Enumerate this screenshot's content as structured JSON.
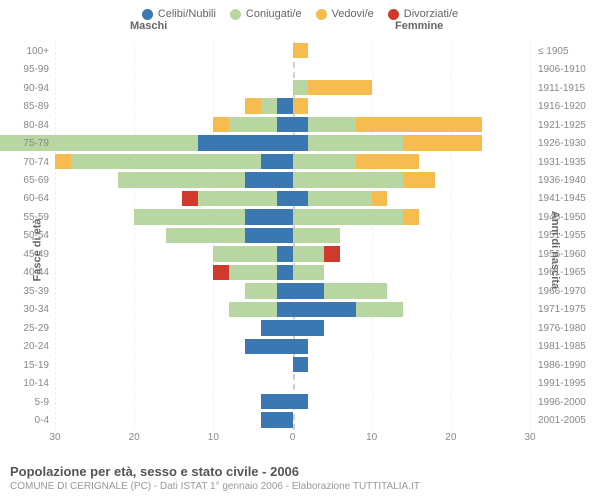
{
  "legend": {
    "items": [
      {
        "label": "Celibi/Nubili",
        "color": "#3b77b0"
      },
      {
        "label": "Coniugati/e",
        "color": "#b7d6a2"
      },
      {
        "label": "Vedovi/e",
        "color": "#f6bc4f"
      },
      {
        "label": "Divorziati/e",
        "color": "#cf3a2d"
      }
    ]
  },
  "genders": {
    "left": "Maschi",
    "right": "Femmine"
  },
  "axes": {
    "left_title": "Fasce di età",
    "right_title": "Anni di nascita",
    "x_max": 30,
    "x_ticks": [
      30,
      20,
      10,
      0,
      10,
      20,
      30
    ]
  },
  "colors": {
    "celibi": "#3b77b0",
    "coniugati": "#b7d6a2",
    "vedovi": "#f6bc4f",
    "divorziati": "#cf3a2d"
  },
  "rows": [
    {
      "age": "100+",
      "birth": "≤ 1905",
      "m": {
        "c": 0,
        "k": 0,
        "v": 0,
        "d": 0
      },
      "f": {
        "c": 0,
        "k": 0,
        "v": 1,
        "d": 0
      }
    },
    {
      "age": "95-99",
      "birth": "1906-1910",
      "m": {
        "c": 0,
        "k": 0,
        "v": 0,
        "d": 0
      },
      "f": {
        "c": 0,
        "k": 0,
        "v": 0,
        "d": 0
      }
    },
    {
      "age": "90-94",
      "birth": "1911-1915",
      "m": {
        "c": 0,
        "k": 0,
        "v": 0,
        "d": 0
      },
      "f": {
        "c": 0,
        "k": 1,
        "v": 4,
        "d": 0
      }
    },
    {
      "age": "85-89",
      "birth": "1916-1920",
      "m": {
        "c": 1,
        "k": 1,
        "v": 1,
        "d": 0
      },
      "f": {
        "c": 0,
        "k": 0,
        "v": 1,
        "d": 0
      }
    },
    {
      "age": "80-84",
      "birth": "1921-1925",
      "m": {
        "c": 1,
        "k": 3,
        "v": 1,
        "d": 0
      },
      "f": {
        "c": 1,
        "k": 3,
        "v": 8,
        "d": 0
      }
    },
    {
      "age": "75-79",
      "birth": "1926-1930",
      "m": {
        "c": 6,
        "k": 15,
        "v": 1,
        "d": 1
      },
      "f": {
        "c": 1,
        "k": 6,
        "v": 5,
        "d": 0
      }
    },
    {
      "age": "70-74",
      "birth": "1931-1935",
      "m": {
        "c": 2,
        "k": 12,
        "v": 1,
        "d": 0
      },
      "f": {
        "c": 0,
        "k": 4,
        "v": 4,
        "d": 0
      }
    },
    {
      "age": "65-69",
      "birth": "1936-1940",
      "m": {
        "c": 3,
        "k": 8,
        "v": 0,
        "d": 0
      },
      "f": {
        "c": 0,
        "k": 7,
        "v": 2,
        "d": 0
      }
    },
    {
      "age": "60-64",
      "birth": "1941-1945",
      "m": {
        "c": 1,
        "k": 5,
        "v": 0,
        "d": 1
      },
      "f": {
        "c": 1,
        "k": 4,
        "v": 1,
        "d": 0
      }
    },
    {
      "age": "55-59",
      "birth": "1946-1950",
      "m": {
        "c": 3,
        "k": 7,
        "v": 0,
        "d": 0
      },
      "f": {
        "c": 0,
        "k": 7,
        "v": 1,
        "d": 0
      }
    },
    {
      "age": "50-54",
      "birth": "1951-1955",
      "m": {
        "c": 3,
        "k": 5,
        "v": 0,
        "d": 0
      },
      "f": {
        "c": 0,
        "k": 3,
        "v": 0,
        "d": 0
      }
    },
    {
      "age": "45-49",
      "birth": "1956-1960",
      "m": {
        "c": 1,
        "k": 4,
        "v": 0,
        "d": 0
      },
      "f": {
        "c": 0,
        "k": 2,
        "v": 0,
        "d": 1
      }
    },
    {
      "age": "40-44",
      "birth": "1961-1965",
      "m": {
        "c": 1,
        "k": 3,
        "v": 0,
        "d": 1
      },
      "f": {
        "c": 0,
        "k": 2,
        "v": 0,
        "d": 0
      }
    },
    {
      "age": "35-39",
      "birth": "1966-1970",
      "m": {
        "c": 1,
        "k": 2,
        "v": 0,
        "d": 0
      },
      "f": {
        "c": 2,
        "k": 4,
        "v": 0,
        "d": 0
      }
    },
    {
      "age": "30-34",
      "birth": "1971-1975",
      "m": {
        "c": 1,
        "k": 3,
        "v": 0,
        "d": 0
      },
      "f": {
        "c": 4,
        "k": 3,
        "v": 0,
        "d": 0
      }
    },
    {
      "age": "25-29",
      "birth": "1976-1980",
      "m": {
        "c": 2,
        "k": 0,
        "v": 0,
        "d": 0
      },
      "f": {
        "c": 2,
        "k": 0,
        "v": 0,
        "d": 0
      }
    },
    {
      "age": "20-24",
      "birth": "1981-1985",
      "m": {
        "c": 3,
        "k": 0,
        "v": 0,
        "d": 0
      },
      "f": {
        "c": 1,
        "k": 0,
        "v": 0,
        "d": 0
      }
    },
    {
      "age": "15-19",
      "birth": "1986-1990",
      "m": {
        "c": 0,
        "k": 0,
        "v": 0,
        "d": 0
      },
      "f": {
        "c": 1,
        "k": 0,
        "v": 0,
        "d": 0
      }
    },
    {
      "age": "10-14",
      "birth": "1991-1995",
      "m": {
        "c": 0,
        "k": 0,
        "v": 0,
        "d": 0
      },
      "f": {
        "c": 0,
        "k": 0,
        "v": 0,
        "d": 0
      }
    },
    {
      "age": "5-9",
      "birth": "1996-2000",
      "m": {
        "c": 2,
        "k": 0,
        "v": 0,
        "d": 0
      },
      "f": {
        "c": 1,
        "k": 0,
        "v": 0,
        "d": 0
      }
    },
    {
      "age": "0-4",
      "birth": "2001-2005",
      "m": {
        "c": 2,
        "k": 0,
        "v": 0,
        "d": 0
      },
      "f": {
        "c": 0,
        "k": 0,
        "v": 0,
        "d": 0
      }
    }
  ],
  "footer": {
    "title": "Popolazione per età, sesso e stato civile - 2006",
    "caption": "COMUNE DI CERIGNALE (PC) - Dati ISTAT 1° gennaio 2006 - Elaborazione TUTTITALIA.IT"
  }
}
